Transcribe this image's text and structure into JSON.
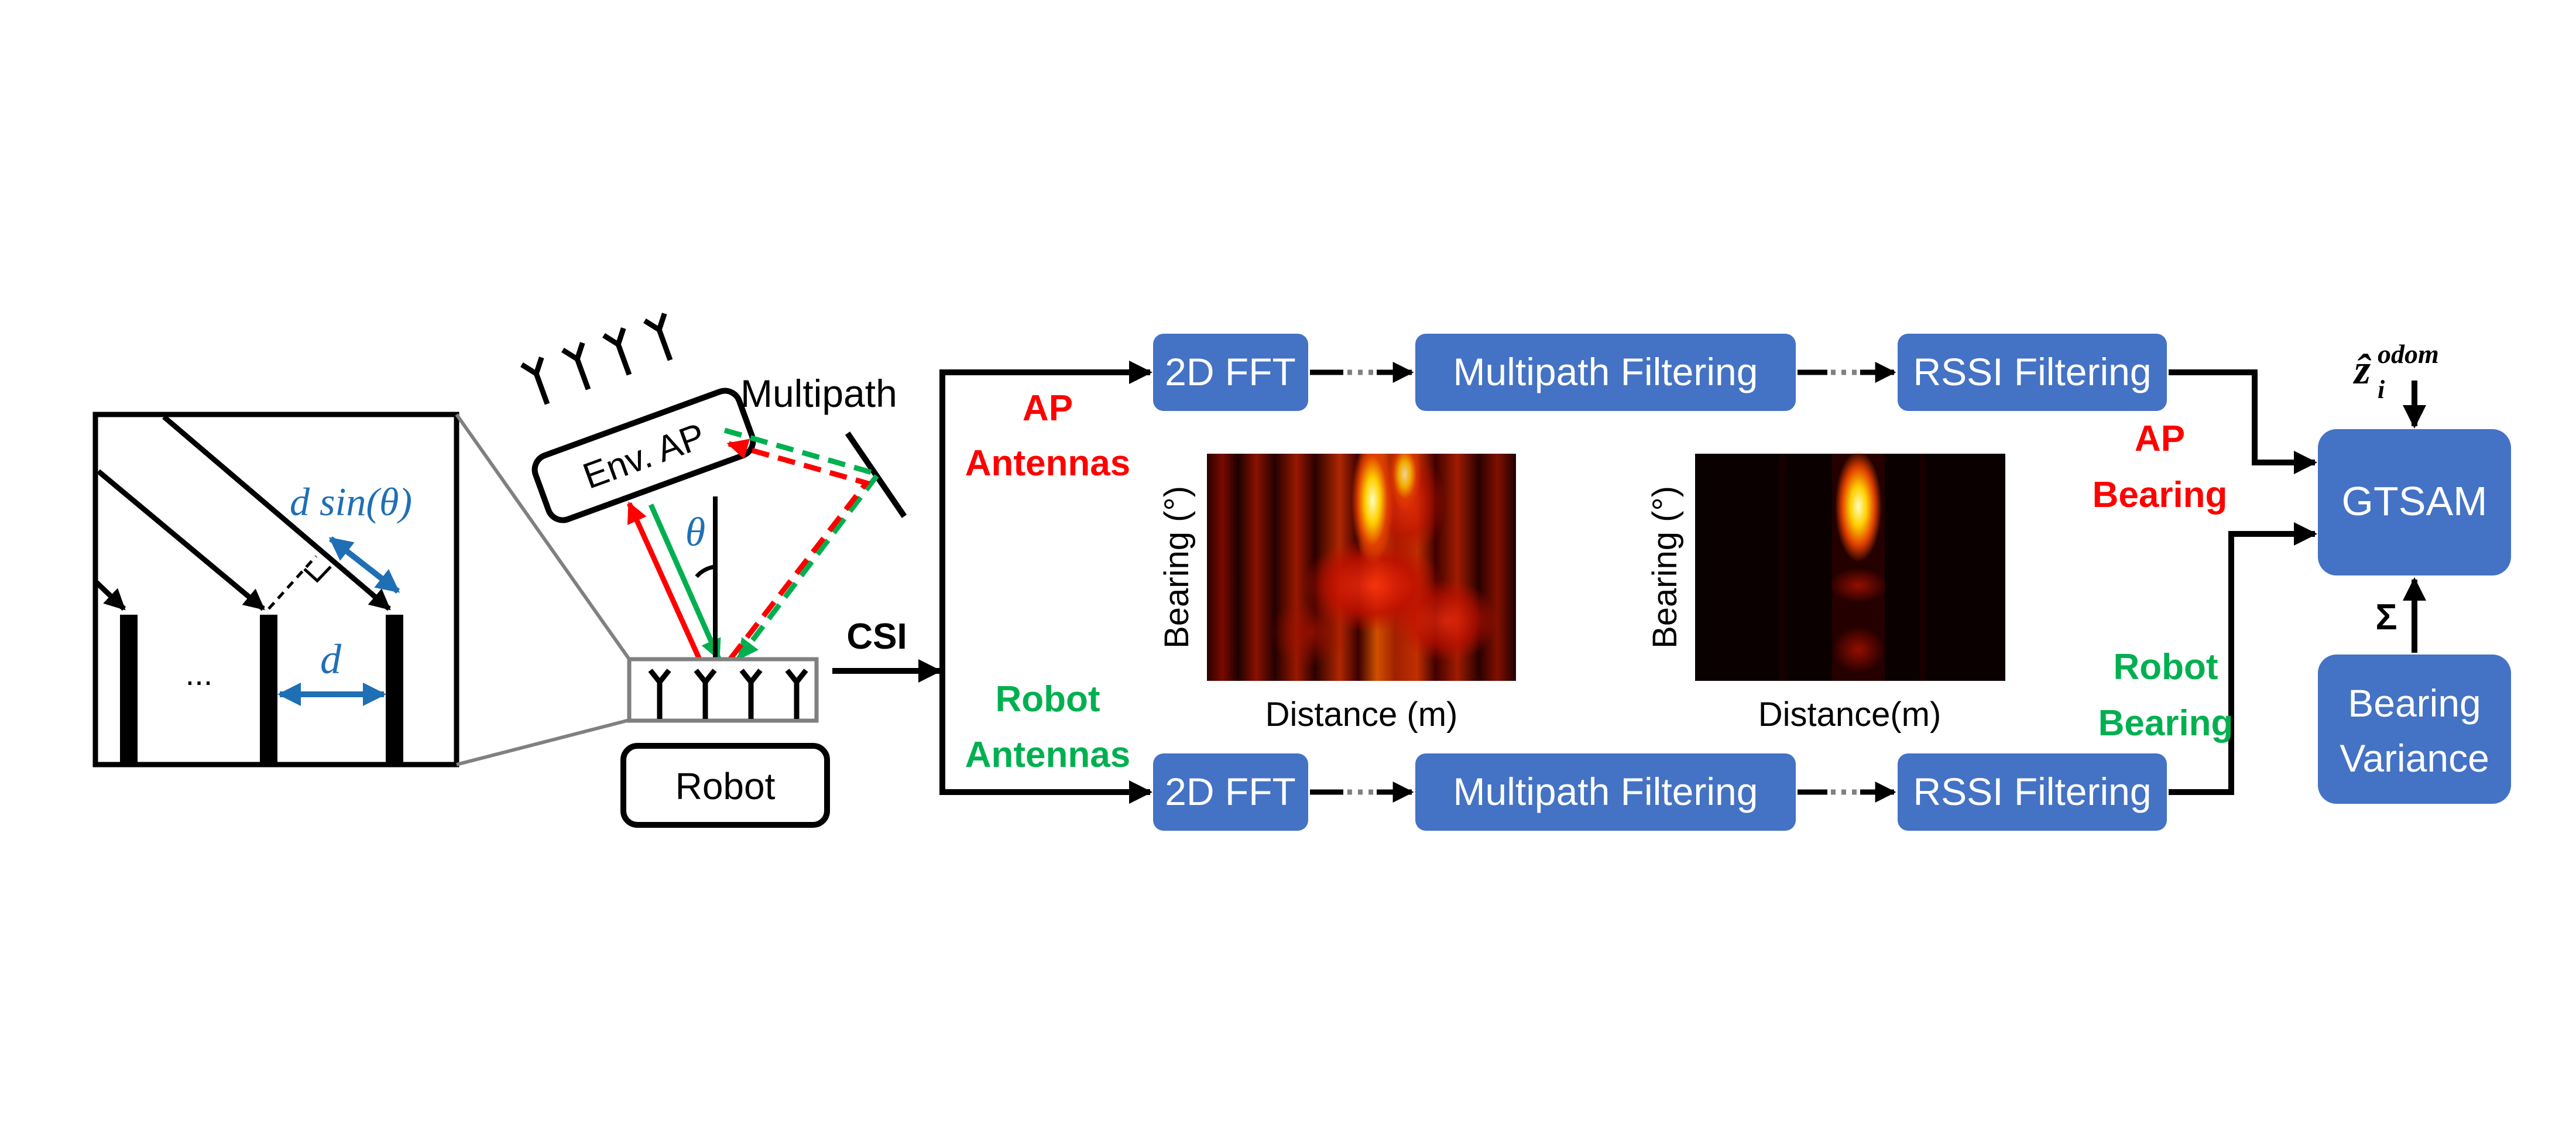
{
  "colors": {
    "box_fill": "#4472c4",
    "box_text": "#ffffff",
    "red": "#ff0000",
    "green": "#00b050",
    "blue": "#1f6fb5",
    "black": "#000000",
    "gray": "#808080"
  },
  "inset": {
    "dsin_label": "d sin(θ)",
    "d_label": "d",
    "ellipsis": "..."
  },
  "scene": {
    "env_ap_label": "Env. AP",
    "multipath_label": "Multipath",
    "theta_label": "θ",
    "robot_label": "Robot",
    "csi_label": "CSI"
  },
  "branches": {
    "ap": {
      "input_label": [
        "AP",
        "Antennas"
      ],
      "output_label": [
        "AP",
        "Bearing"
      ],
      "fft_label": "2D FFT",
      "multipath_label": "Multipath Filtering",
      "rssi_label": "RSSI Filtering"
    },
    "robot": {
      "input_label": [
        "Robot",
        "Antennas"
      ],
      "output_label": [
        "Robot",
        "Bearing"
      ],
      "fft_label": "2D FFT",
      "multipath_label": "Multipath Filtering",
      "rssi_label": "RSSI Filtering"
    }
  },
  "heatmaps": {
    "left": {
      "xlabel": "Distance (m)",
      "ylabel": "Bearing (°)"
    },
    "right": {
      "xlabel": "Distance(m)",
      "ylabel": "Bearing (°)"
    }
  },
  "backend": {
    "gtsam_label": "GTSAM",
    "odom_label": "ẑ",
    "odom_sub": "i",
    "odom_sup": "odom",
    "sigma_label": "Σ",
    "variance_label": [
      "Bearing",
      "Variance"
    ]
  }
}
